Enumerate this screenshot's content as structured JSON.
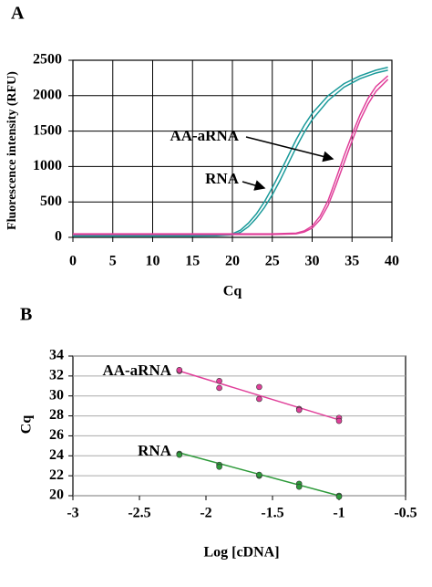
{
  "chart_data": [
    {
      "panel": "A",
      "type": "line",
      "x_label": "Cq",
      "y_label": "Fluorescence intensity (RFU)",
      "xlim": [
        0,
        40
      ],
      "xticks": [
        0,
        5,
        10,
        15,
        20,
        25,
        30,
        35,
        40
      ],
      "ylim": [
        0,
        2500
      ],
      "yticks": [
        0,
        500,
        1000,
        1500,
        2000,
        2500
      ],
      "grid": "both",
      "series": [
        {
          "name": "RNA",
          "color": "#1a9a9a",
          "x": [
            0,
            5,
            10,
            15,
            18,
            20,
            21,
            22,
            23,
            24,
            25,
            26,
            27,
            28,
            29,
            30,
            32,
            34,
            36,
            38,
            39.5
          ],
          "replicates": [
            [
              30,
              30,
              30,
              30,
              32,
              50,
              100,
              200,
              330,
              500,
              700,
              920,
              1150,
              1380,
              1580,
              1750,
              2000,
              2170,
              2280,
              2360,
              2400
            ],
            [
              20,
              20,
              20,
              20,
              22,
              35,
              70,
              150,
              270,
              420,
              600,
              810,
              1040,
              1270,
              1480,
              1660,
              1930,
              2120,
              2240,
              2320,
              2360
            ]
          ]
        },
        {
          "name": "AA-aRNA",
          "color": "#e0409a",
          "x": [
            0,
            5,
            10,
            15,
            20,
            25,
            28,
            29,
            30,
            31,
            32,
            33,
            34,
            35,
            36,
            37,
            38,
            39.5
          ],
          "replicates": [
            [
              50,
              50,
              50,
              50,
              50,
              50,
              60,
              90,
              160,
              300,
              520,
              830,
              1150,
              1450,
              1730,
              1960,
              2130,
              2280
            ],
            [
              40,
              40,
              40,
              40,
              40,
              40,
              50,
              75,
              130,
              250,
              450,
              740,
              1050,
              1360,
              1650,
              1880,
              2060,
              2230
            ]
          ]
        }
      ]
    },
    {
      "panel": "B",
      "type": "scatter",
      "x_label": "Log [cDNA]",
      "y_label": "Cq",
      "xlim": [
        -3,
        -0.5
      ],
      "xticks": [
        -3,
        -2.5,
        -2,
        -1.5,
        -1,
        -0.5
      ],
      "ylim": [
        20,
        34
      ],
      "yticks": [
        20,
        22,
        24,
        26,
        28,
        30,
        32,
        34
      ],
      "grid": "y",
      "series": [
        {
          "name": "AA-aRNA",
          "color": "#e0409a",
          "x": [
            -2.2,
            -2.2,
            -1.9,
            -1.9,
            -1.6,
            -1.6,
            -1.3,
            -1.3,
            -1,
            -1
          ],
          "values": [
            32.5,
            32.6,
            31.5,
            30.8,
            30.9,
            29.7,
            28.7,
            28.6,
            27.8,
            27.5
          ],
          "trend": {
            "x": [
              -2.2,
              -1
            ],
            "values": [
              32.5,
              27.6
            ]
          }
        },
        {
          "name": "RNA",
          "color": "#2e9a3a",
          "x": [
            -2.2,
            -2.2,
            -1.9,
            -1.9,
            -1.6,
            -1.6,
            -1.3,
            -1.3,
            -1,
            -1
          ],
          "values": [
            24.2,
            24.1,
            23.1,
            22.9,
            22,
            22.1,
            21.2,
            20.9,
            20,
            19.9
          ],
          "trend": {
            "x": [
              -2.2,
              -1
            ],
            "values": [
              24.3,
              20
            ]
          }
        }
      ]
    }
  ]
}
